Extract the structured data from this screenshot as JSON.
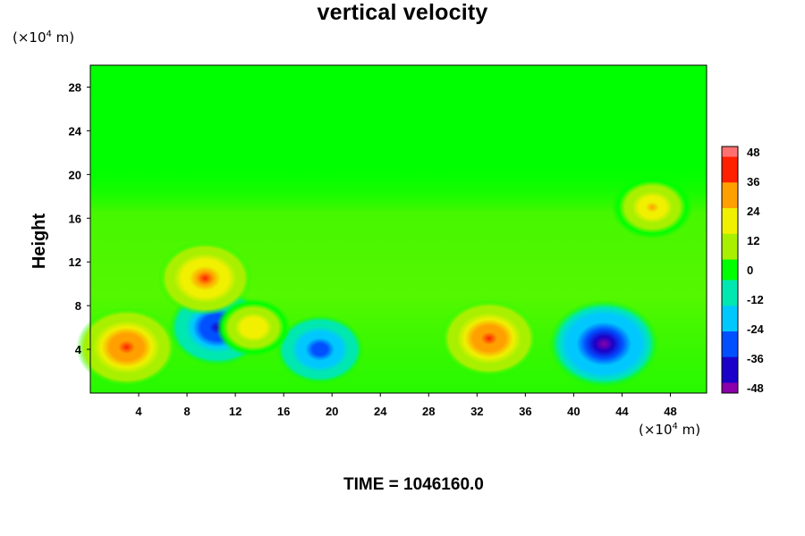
{
  "chart_data": {
    "type": "heatmap",
    "title": "vertical velocity",
    "ylabel": "Height",
    "xlabel": "",
    "x_unit": {
      "prefix": "(×10",
      "exp": "4",
      "suffix": " m)"
    },
    "y_unit": {
      "prefix": "(×10",
      "exp": "4",
      "suffix": " m)"
    },
    "xlim": [
      0,
      51
    ],
    "ylim": [
      0,
      30
    ],
    "x_ticks": [
      "4",
      "8",
      "12",
      "16",
      "20",
      "24",
      "28",
      "32",
      "36",
      "40",
      "44",
      "48"
    ],
    "y_ticks": [
      "4",
      "8",
      "12",
      "16",
      "20",
      "24",
      "28"
    ],
    "colorbar": {
      "ticks": [
        "48",
        "36",
        "24",
        "12",
        "0",
        "-12",
        "-24",
        "-36",
        "-48"
      ],
      "range": [
        -48,
        48
      ],
      "colormap": [
        "#8a00aa",
        "#1a00c8",
        "#0050ff",
        "#00c8ff",
        "#00e8b0",
        "#00ff00",
        "#a8f000",
        "#f0f000",
        "#ffa000",
        "#ff2000",
        "#ff7070"
      ]
    },
    "features": [
      {
        "x": 3,
        "y": 4.2,
        "value": 38
      },
      {
        "x": 33,
        "y": 5,
        "value": 36
      },
      {
        "x": 42.5,
        "y": 4.5,
        "value": -44
      },
      {
        "x": 10.5,
        "y": 6,
        "value": -36
      },
      {
        "x": 19,
        "y": 4,
        "value": -30
      },
      {
        "x": 9.5,
        "y": 10.5,
        "value": 34
      },
      {
        "x": 46.5,
        "y": 17,
        "value": 26
      },
      {
        "x": 13.5,
        "y": 6,
        "value": 22
      }
    ],
    "background_value": 0,
    "grid": false
  },
  "footer": {
    "time_label": "TIME = 1046160.0"
  }
}
